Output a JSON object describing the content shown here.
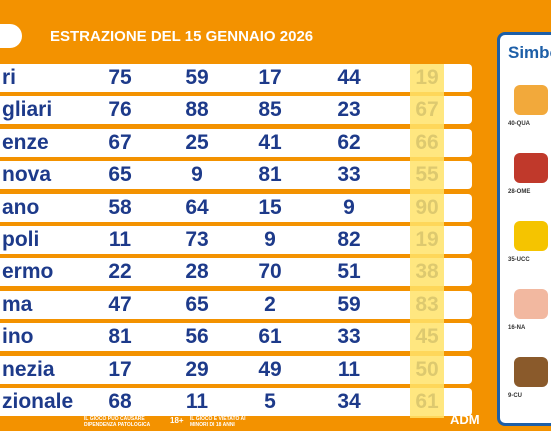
{
  "header": {
    "title": "ESTRAZIONE DEL 15 GENNAIO 2026"
  },
  "table": {
    "rows": [
      [
        "ri",
        "75",
        "59",
        "17",
        "44",
        "19"
      ],
      [
        "gliari",
        "76",
        "88",
        "85",
        "23",
        "67"
      ],
      [
        "enze",
        "67",
        "25",
        "41",
        "62",
        "66"
      ],
      [
        "nova",
        "65",
        "9",
        "81",
        "33",
        "55"
      ],
      [
        "ano",
        "58",
        "64",
        "15",
        "9",
        "90"
      ],
      [
        "poli",
        "11",
        "73",
        "9",
        "82",
        "19"
      ],
      [
        "ermo",
        "22",
        "28",
        "70",
        "51",
        "38"
      ],
      [
        "ma",
        "47",
        "65",
        "2",
        "59",
        "83"
      ],
      [
        "ino",
        "81",
        "56",
        "61",
        "33",
        "45"
      ],
      [
        "nezia",
        "17",
        "29",
        "49",
        "11",
        "50"
      ],
      [
        "zionale",
        "68",
        "11",
        "5",
        "34",
        "61"
      ]
    ]
  },
  "side_panel": {
    "title": "Simbo",
    "symbols": [
      "40-QUA",
      "28-OME",
      "35-UCC",
      "16-NA",
      "9-CU"
    ]
  },
  "footer": {
    "warning": "IL GIOCO PUÒ CAUSARE DIPENDENZA PATOLOGICA",
    "age": "18+",
    "minors": "IL GIOCO È VIETATO AI MINORI DI 18 ANNI",
    "brand": "ADM"
  }
}
